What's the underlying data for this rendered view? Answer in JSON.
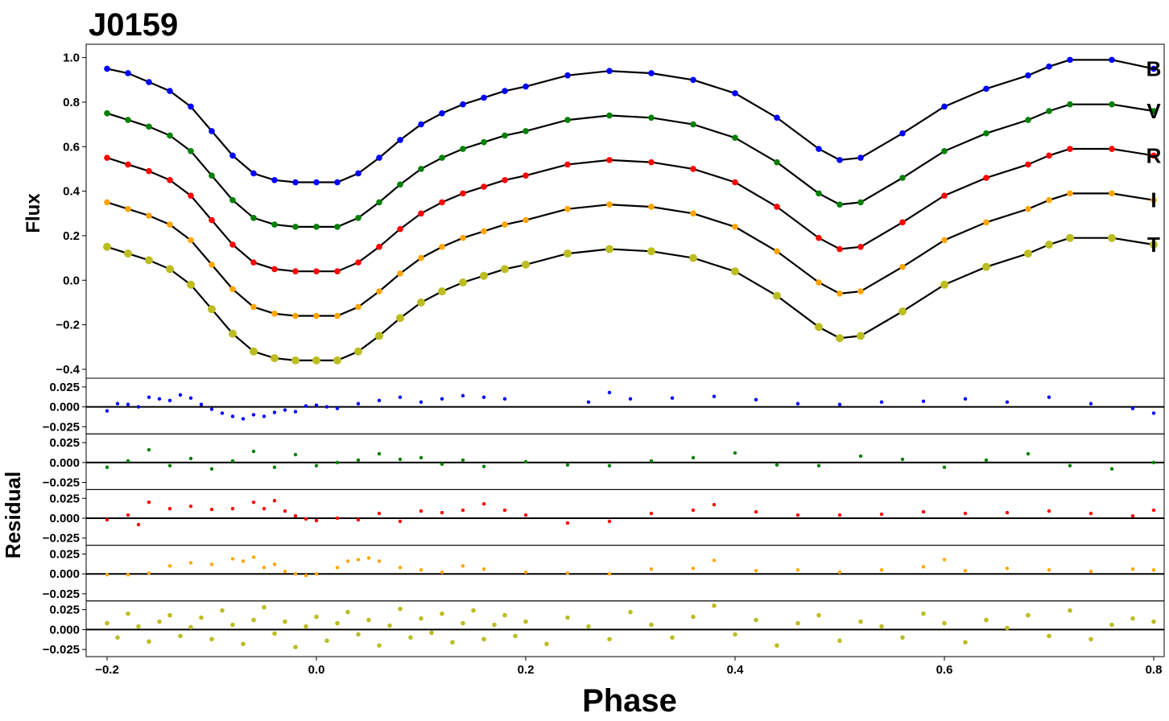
{
  "chart_data": {
    "type": "scatter",
    "title": "J0159",
    "xlabel": "Phase",
    "ylabel_top": "Flux",
    "ylabel_bottom": "Residual",
    "xlim": [
      -0.22,
      0.81
    ],
    "x_ticks": [
      -0.2,
      0.0,
      0.2,
      0.4,
      0.6,
      0.8
    ],
    "x_tick_labels": [
      "−0.2",
      "0.0",
      "0.2",
      "0.4",
      "0.6",
      "0.8"
    ],
    "top_panel": {
      "ylim": [
        -0.44,
        1.06
      ],
      "y_ticks": [
        1.0,
        0.8,
        0.6,
        0.4,
        0.2,
        0.0,
        -0.2,
        -0.4
      ],
      "y_tick_labels": [
        "1.0",
        "0.8",
        "0.6",
        "0.4",
        "0.2",
        "0.0",
        "−0.2",
        "−0.4"
      ]
    },
    "residual_panels": {
      "ylim": [
        -0.034,
        0.036
      ],
      "y_ticks": [
        0.025,
        0.0,
        -0.025
      ],
      "y_tick_labels": [
        "0.025",
        "0.000",
        "−0.025"
      ]
    },
    "grid": false,
    "fit_color": "#000000",
    "series": [
      {
        "name": "B",
        "color": "#0000ff",
        "marker_size": 3.8,
        "x": [
          -0.2,
          -0.18,
          -0.16,
          -0.14,
          -0.12,
          -0.1,
          -0.08,
          -0.06,
          -0.04,
          -0.02,
          0.0,
          0.02,
          0.04,
          0.06,
          0.08,
          0.1,
          0.12,
          0.14,
          0.16,
          0.18,
          0.2,
          0.24,
          0.28,
          0.32,
          0.36,
          0.4,
          0.44,
          0.48,
          0.5,
          0.52,
          0.56,
          0.6,
          0.64,
          0.68,
          0.7,
          0.72,
          0.76,
          0.8
        ],
        "y": [
          0.95,
          0.93,
          0.89,
          0.85,
          0.78,
          0.67,
          0.56,
          0.48,
          0.45,
          0.44,
          0.44,
          0.44,
          0.48,
          0.55,
          0.63,
          0.7,
          0.75,
          0.79,
          0.82,
          0.85,
          0.87,
          0.92,
          0.94,
          0.93,
          0.9,
          0.84,
          0.73,
          0.59,
          0.54,
          0.55,
          0.66,
          0.78,
          0.86,
          0.92,
          0.96,
          0.99,
          0.99,
          0.95
        ],
        "residuals_x": [
          -0.2,
          -0.19,
          -0.18,
          -0.17,
          -0.16,
          -0.15,
          -0.14,
          -0.13,
          -0.12,
          -0.11,
          -0.1,
          -0.09,
          -0.08,
          -0.07,
          -0.06,
          -0.05,
          -0.04,
          -0.03,
          -0.02,
          -0.01,
          0.0,
          0.01,
          0.02,
          0.04,
          0.06,
          0.08,
          0.1,
          0.12,
          0.14,
          0.16,
          0.18,
          0.26,
          0.28,
          0.3,
          0.34,
          0.38,
          0.42,
          0.46,
          0.5,
          0.54,
          0.58,
          0.62,
          0.66,
          0.7,
          0.74,
          0.78,
          0.8
        ],
        "residuals": [
          -0.005,
          0.004,
          0.003,
          0.0,
          0.012,
          0.01,
          0.008,
          0.015,
          0.011,
          0.003,
          -0.003,
          -0.008,
          -0.012,
          -0.015,
          -0.01,
          -0.012,
          -0.007,
          -0.004,
          -0.006,
          0.001,
          0.002,
          0.0,
          -0.002,
          0.004,
          0.008,
          0.012,
          0.006,
          0.01,
          0.014,
          0.012,
          0.01,
          0.006,
          0.018,
          0.01,
          0.011,
          0.013,
          0.009,
          0.004,
          0.003,
          0.006,
          0.007,
          0.01,
          0.006,
          0.012,
          0.004,
          -0.002,
          -0.008
        ]
      },
      {
        "name": "V",
        "color": "#008000",
        "marker_size": 3.8,
        "x": [
          -0.2,
          -0.18,
          -0.16,
          -0.14,
          -0.12,
          -0.1,
          -0.08,
          -0.06,
          -0.04,
          -0.02,
          0.0,
          0.02,
          0.04,
          0.06,
          0.08,
          0.1,
          0.12,
          0.14,
          0.16,
          0.18,
          0.2,
          0.24,
          0.28,
          0.32,
          0.36,
          0.4,
          0.44,
          0.48,
          0.5,
          0.52,
          0.56,
          0.6,
          0.64,
          0.68,
          0.7,
          0.72,
          0.76,
          0.8
        ],
        "y": [
          0.75,
          0.72,
          0.69,
          0.65,
          0.58,
          0.47,
          0.36,
          0.28,
          0.25,
          0.24,
          0.24,
          0.24,
          0.28,
          0.35,
          0.43,
          0.5,
          0.55,
          0.59,
          0.62,
          0.65,
          0.67,
          0.72,
          0.74,
          0.73,
          0.7,
          0.64,
          0.53,
          0.39,
          0.34,
          0.35,
          0.46,
          0.58,
          0.66,
          0.72,
          0.76,
          0.79,
          0.79,
          0.76
        ],
        "residuals_x": [
          -0.2,
          -0.18,
          -0.16,
          -0.14,
          -0.12,
          -0.1,
          -0.08,
          -0.06,
          -0.04,
          -0.02,
          0.0,
          0.02,
          0.04,
          0.06,
          0.08,
          0.1,
          0.12,
          0.14,
          0.16,
          0.2,
          0.24,
          0.28,
          0.32,
          0.36,
          0.4,
          0.44,
          0.48,
          0.52,
          0.56,
          0.6,
          0.64,
          0.68,
          0.72,
          0.76,
          0.8
        ],
        "residuals": [
          -0.006,
          0.002,
          0.016,
          -0.004,
          0.005,
          -0.008,
          0.002,
          0.014,
          -0.006,
          0.01,
          -0.004,
          0.0,
          0.003,
          0.011,
          0.004,
          0.006,
          -0.002,
          0.003,
          -0.005,
          0.001,
          -0.003,
          -0.004,
          0.002,
          0.006,
          0.012,
          -0.003,
          -0.004,
          0.008,
          0.004,
          -0.006,
          0.003,
          0.011,
          -0.004,
          -0.008,
          0.0
        ]
      },
      {
        "name": "R",
        "color": "#ff0000",
        "marker_size": 3.8,
        "x": [
          -0.2,
          -0.18,
          -0.16,
          -0.14,
          -0.12,
          -0.1,
          -0.08,
          -0.06,
          -0.04,
          -0.02,
          0.0,
          0.02,
          0.04,
          0.06,
          0.08,
          0.1,
          0.12,
          0.14,
          0.16,
          0.18,
          0.2,
          0.24,
          0.28,
          0.32,
          0.36,
          0.4,
          0.44,
          0.48,
          0.5,
          0.52,
          0.56,
          0.6,
          0.64,
          0.68,
          0.7,
          0.72,
          0.76,
          0.8
        ],
        "y": [
          0.55,
          0.52,
          0.49,
          0.45,
          0.38,
          0.27,
          0.16,
          0.08,
          0.05,
          0.04,
          0.04,
          0.04,
          0.08,
          0.15,
          0.23,
          0.3,
          0.35,
          0.39,
          0.42,
          0.45,
          0.47,
          0.52,
          0.54,
          0.53,
          0.5,
          0.44,
          0.33,
          0.19,
          0.14,
          0.15,
          0.26,
          0.38,
          0.46,
          0.52,
          0.56,
          0.59,
          0.59,
          0.56
        ],
        "residuals_x": [
          -0.2,
          -0.18,
          -0.17,
          -0.16,
          -0.14,
          -0.12,
          -0.1,
          -0.08,
          -0.06,
          -0.05,
          -0.04,
          -0.03,
          -0.02,
          -0.01,
          0.0,
          0.02,
          0.04,
          0.06,
          0.08,
          0.1,
          0.12,
          0.14,
          0.16,
          0.18,
          0.2,
          0.24,
          0.28,
          0.32,
          0.36,
          0.38,
          0.42,
          0.46,
          0.5,
          0.54,
          0.58,
          0.62,
          0.66,
          0.7,
          0.74,
          0.78,
          0.8
        ],
        "residuals": [
          -0.002,
          0.004,
          -0.008,
          0.02,
          0.012,
          0.015,
          0.011,
          0.012,
          0.02,
          0.012,
          0.022,
          0.009,
          0.003,
          -0.001,
          -0.003,
          0.0,
          -0.002,
          0.006,
          -0.004,
          0.009,
          0.007,
          0.01,
          0.018,
          0.01,
          0.004,
          -0.006,
          -0.004,
          0.006,
          0.01,
          0.017,
          0.008,
          0.004,
          0.004,
          0.005,
          0.008,
          0.006,
          0.007,
          0.009,
          0.006,
          0.003,
          0.01
        ]
      },
      {
        "name": "I",
        "color": "#ffa500",
        "marker_size": 3.8,
        "x": [
          -0.2,
          -0.18,
          -0.16,
          -0.14,
          -0.12,
          -0.1,
          -0.08,
          -0.06,
          -0.04,
          -0.02,
          0.0,
          0.02,
          0.04,
          0.06,
          0.08,
          0.1,
          0.12,
          0.14,
          0.16,
          0.18,
          0.2,
          0.24,
          0.28,
          0.32,
          0.36,
          0.4,
          0.44,
          0.48,
          0.5,
          0.52,
          0.56,
          0.6,
          0.64,
          0.68,
          0.7,
          0.72,
          0.76,
          0.8
        ],
        "y": [
          0.35,
          0.32,
          0.29,
          0.25,
          0.18,
          0.07,
          -0.04,
          -0.12,
          -0.15,
          -0.16,
          -0.16,
          -0.16,
          -0.12,
          -0.05,
          0.03,
          0.1,
          0.15,
          0.19,
          0.22,
          0.25,
          0.27,
          0.32,
          0.34,
          0.33,
          0.3,
          0.24,
          0.13,
          -0.01,
          -0.06,
          -0.05,
          0.06,
          0.18,
          0.26,
          0.32,
          0.36,
          0.39,
          0.39,
          0.36
        ],
        "residuals_x": [
          -0.2,
          -0.18,
          -0.16,
          -0.14,
          -0.12,
          -0.1,
          -0.08,
          -0.07,
          -0.06,
          -0.05,
          -0.04,
          -0.03,
          -0.02,
          -0.01,
          0.0,
          0.02,
          0.03,
          0.04,
          0.05,
          0.06,
          0.08,
          0.1,
          0.12,
          0.14,
          0.16,
          0.2,
          0.24,
          0.28,
          0.32,
          0.36,
          0.38,
          0.42,
          0.46,
          0.5,
          0.54,
          0.58,
          0.6,
          0.62,
          0.66,
          0.7,
          0.74,
          0.78,
          0.8
        ],
        "residuals": [
          -0.001,
          -0.001,
          0.001,
          0.01,
          0.014,
          0.012,
          0.019,
          0.016,
          0.021,
          0.008,
          0.012,
          0.003,
          0.0,
          -0.002,
          0.0,
          0.008,
          0.016,
          0.018,
          0.02,
          0.016,
          0.008,
          0.005,
          0.002,
          0.01,
          0.006,
          0.002,
          0.001,
          0.0,
          0.006,
          0.007,
          0.017,
          0.004,
          0.005,
          0.002,
          0.005,
          0.009,
          0.018,
          0.004,
          0.007,
          0.005,
          0.003,
          0.006,
          0.005
        ]
      },
      {
        "name": "T",
        "color": "#bcbd22",
        "marker_size": 5.0,
        "x": [
          -0.2,
          -0.18,
          -0.16,
          -0.14,
          -0.12,
          -0.1,
          -0.08,
          -0.06,
          -0.04,
          -0.02,
          0.0,
          0.02,
          0.04,
          0.06,
          0.08,
          0.1,
          0.12,
          0.14,
          0.16,
          0.18,
          0.2,
          0.24,
          0.28,
          0.32,
          0.36,
          0.4,
          0.44,
          0.48,
          0.5,
          0.52,
          0.56,
          0.6,
          0.64,
          0.68,
          0.7,
          0.72,
          0.76,
          0.8
        ],
        "y": [
          0.15,
          0.12,
          0.09,
          0.05,
          -0.02,
          -0.13,
          -0.24,
          -0.32,
          -0.35,
          -0.36,
          -0.36,
          -0.36,
          -0.32,
          -0.25,
          -0.17,
          -0.1,
          -0.05,
          -0.01,
          0.02,
          0.05,
          0.07,
          0.12,
          0.14,
          0.13,
          0.1,
          0.04,
          -0.07,
          -0.21,
          -0.26,
          -0.25,
          -0.14,
          -0.02,
          0.06,
          0.12,
          0.16,
          0.19,
          0.19,
          0.16
        ],
        "residuals_x": [
          -0.2,
          -0.19,
          -0.18,
          -0.17,
          -0.16,
          -0.15,
          -0.14,
          -0.13,
          -0.12,
          -0.11,
          -0.1,
          -0.09,
          -0.08,
          -0.07,
          -0.06,
          -0.05,
          -0.04,
          -0.03,
          -0.02,
          -0.01,
          0.0,
          0.01,
          0.02,
          0.03,
          0.04,
          0.05,
          0.06,
          0.07,
          0.08,
          0.09,
          0.1,
          0.11,
          0.12,
          0.13,
          0.14,
          0.15,
          0.16,
          0.17,
          0.18,
          0.19,
          0.2,
          0.22,
          0.24,
          0.26,
          0.28,
          0.3,
          0.32,
          0.34,
          0.36,
          0.38,
          0.4,
          0.42,
          0.44,
          0.46,
          0.48,
          0.5,
          0.52,
          0.54,
          0.56,
          0.58,
          0.6,
          0.62,
          0.64,
          0.66,
          0.68,
          0.7,
          0.72,
          0.74,
          0.76,
          0.78,
          0.8
        ],
        "residuals": [
          0.008,
          -0.01,
          0.02,
          0.004,
          -0.015,
          0.01,
          0.018,
          -0.008,
          0.003,
          0.015,
          -0.012,
          0.024,
          0.006,
          -0.018,
          0.012,
          0.028,
          -0.005,
          0.01,
          -0.022,
          0.004,
          0.016,
          -0.014,
          0.008,
          0.022,
          -0.006,
          0.012,
          -0.02,
          0.005,
          0.026,
          -0.01,
          0.014,
          -0.004,
          0.02,
          -0.016,
          0.008,
          0.024,
          -0.012,
          0.006,
          0.018,
          -0.008,
          0.01,
          -0.018,
          0.015,
          0.004,
          -0.012,
          0.022,
          0.006,
          -0.01,
          0.016,
          0.03,
          -0.006,
          0.012,
          -0.02,
          0.008,
          0.018,
          -0.014,
          0.01,
          0.004,
          -0.01,
          0.02,
          0.008,
          -0.016,
          0.012,
          0.002,
          0.018,
          -0.008,
          0.024,
          -0.012,
          0.006,
          0.014,
          0.01
        ]
      }
    ]
  }
}
